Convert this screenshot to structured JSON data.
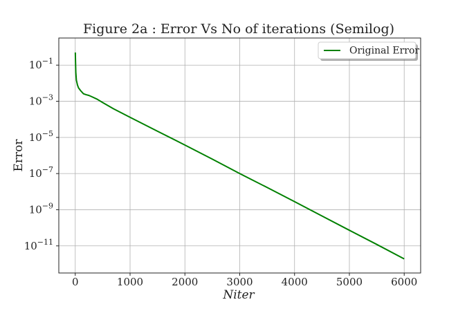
{
  "chart_data": {
    "type": "line",
    "title": "Figure 2a : Error Vs No of iterations (Semilog)",
    "xlabel": "Niter",
    "ylabel": "Error",
    "xlim": [
      -300,
      6300
    ],
    "ylim_log10": [
      -12.5,
      0.5
    ],
    "yscale": "log",
    "grid": true,
    "legend_position": "top-right",
    "x_ticks": [
      0,
      1000,
      2000,
      3000,
      4000,
      5000,
      6000
    ],
    "x_tick_labels": [
      "0",
      "1000",
      "2000",
      "3000",
      "4000",
      "5000",
      "6000"
    ],
    "y_tick_exponents": [
      -1,
      -3,
      -5,
      -7,
      -9,
      -11
    ],
    "y_tick_labels": [
      {
        "base": "10",
        "exp": "−1"
      },
      {
        "base": "10",
        "exp": "−3"
      },
      {
        "base": "10",
        "exp": "−5"
      },
      {
        "base": "10",
        "exp": "−7"
      },
      {
        "base": "10",
        "exp": "−9"
      },
      {
        "base": "10",
        "exp": "−11"
      }
    ],
    "series": [
      {
        "name": "Original Error",
        "color": "#008000",
        "x": [
          1,
          5,
          10,
          20,
          40,
          60,
          100,
          150,
          200,
          250,
          300,
          400,
          500,
          700,
          1000,
          1500,
          2000,
          2500,
          3000,
          3500,
          4000,
          4500,
          5000,
          5500,
          6000
        ],
        "y": [
          0.5,
          0.15,
          0.04,
          0.015,
          0.008,
          0.0055,
          0.0038,
          0.0026,
          0.0023,
          0.0021,
          0.0018,
          0.0013,
          0.00085,
          0.00038,
          0.00013,
          2.2e-05,
          3.8e-06,
          6.3e-07,
          1e-07,
          1.7e-08,
          2.8e-09,
          4.5e-10,
          7.3e-11,
          1.2e-11,
          1.9e-12
        ]
      }
    ]
  }
}
